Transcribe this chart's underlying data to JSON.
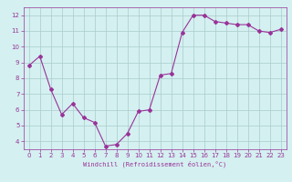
{
  "x": [
    0,
    1,
    2,
    3,
    4,
    5,
    6,
    7,
    8,
    9,
    10,
    11,
    12,
    13,
    14,
    15,
    16,
    17,
    18,
    19,
    20,
    21,
    22,
    23
  ],
  "y": [
    8.8,
    9.4,
    7.3,
    5.7,
    6.4,
    5.5,
    5.2,
    3.7,
    3.8,
    4.5,
    5.9,
    6.0,
    8.2,
    8.3,
    10.9,
    12.0,
    12.0,
    11.6,
    11.5,
    11.4,
    11.4,
    11.0,
    10.9,
    11.1
  ],
  "line_color": "#993399",
  "marker": "D",
  "marker_size": 2,
  "bg_color": "#d4f0f0",
  "grid_color": "#aacccc",
  "xlabel": "Windchill (Refroidissement éolien,°C)",
  "xlabel_color": "#993399",
  "tick_color": "#993399",
  "ylim": [
    3.5,
    12.5
  ],
  "yticks": [
    4,
    5,
    6,
    7,
    8,
    9,
    10,
    11,
    12
  ],
  "xlim": [
    -0.5,
    23.5
  ],
  "xticks": [
    0,
    1,
    2,
    3,
    4,
    5,
    6,
    7,
    8,
    9,
    10,
    11,
    12,
    13,
    14,
    15,
    16,
    17,
    18,
    19,
    20,
    21,
    22,
    23
  ],
  "spine_color": "#993399",
  "fig_bg": "#d4f0f0",
  "tick_fontsize": 5,
  "xlabel_fontsize": 5
}
